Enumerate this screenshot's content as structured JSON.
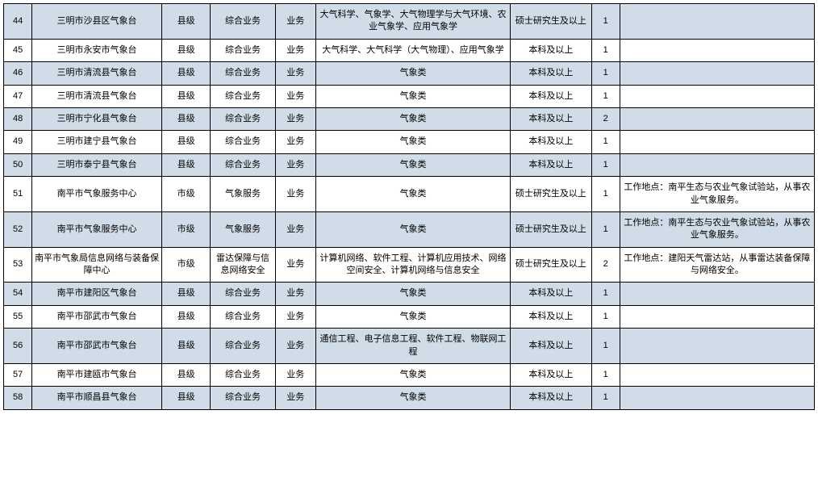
{
  "table": {
    "background_color": "#ffffff",
    "border_color": "#000000",
    "shaded_row_background": "#d0dce8",
    "text_color": "#000000",
    "font_size": 11,
    "columns": [
      {
        "key": "idx",
        "class": "col-idx"
      },
      {
        "key": "unit",
        "class": "col-unit"
      },
      {
        "key": "level",
        "class": "col-level"
      },
      {
        "key": "pos",
        "class": "col-pos"
      },
      {
        "key": "cat",
        "class": "col-cat"
      },
      {
        "key": "major",
        "class": "col-major"
      },
      {
        "key": "edu",
        "class": "col-edu"
      },
      {
        "key": "qty",
        "class": "col-qty"
      },
      {
        "key": "note",
        "class": "col-note"
      }
    ],
    "rows": [
      {
        "shaded": true,
        "idx": "44",
        "unit": "三明市沙县区气象台",
        "level": "县级",
        "pos": "综合业务",
        "cat": "业务",
        "major": "大气科学、气象学、大气物理学与大气环境、农业气象学、应用气象学",
        "edu": "硕士研究生及以上",
        "qty": "1",
        "note": ""
      },
      {
        "shaded": false,
        "idx": "45",
        "unit": "三明市永安市气象台",
        "level": "县级",
        "pos": "综合业务",
        "cat": "业务",
        "major": "大气科学、大气科学（大气物理）、应用气象学",
        "edu": "本科及以上",
        "qty": "1",
        "note": ""
      },
      {
        "shaded": true,
        "idx": "46",
        "unit": "三明市清流县气象台",
        "level": "县级",
        "pos": "综合业务",
        "cat": "业务",
        "major": "气象类",
        "edu": "本科及以上",
        "qty": "1",
        "note": ""
      },
      {
        "shaded": false,
        "idx": "47",
        "unit": "三明市清流县气象台",
        "level": "县级",
        "pos": "综合业务",
        "cat": "业务",
        "major": "气象类",
        "edu": "本科及以上",
        "qty": "1",
        "note": ""
      },
      {
        "shaded": true,
        "idx": "48",
        "unit": "三明市宁化县气象台",
        "level": "县级",
        "pos": "综合业务",
        "cat": "业务",
        "major": "气象类",
        "edu": "本科及以上",
        "qty": "2",
        "note": ""
      },
      {
        "shaded": false,
        "idx": "49",
        "unit": "三明市建宁县气象台",
        "level": "县级",
        "pos": "综合业务",
        "cat": "业务",
        "major": "气象类",
        "edu": "本科及以上",
        "qty": "1",
        "note": ""
      },
      {
        "shaded": true,
        "idx": "50",
        "unit": "三明市泰宁县气象台",
        "level": "县级",
        "pos": "综合业务",
        "cat": "业务",
        "major": "气象类",
        "edu": "本科及以上",
        "qty": "1",
        "note": ""
      },
      {
        "shaded": false,
        "idx": "51",
        "unit": "南平市气象服务中心",
        "level": "市级",
        "pos": "气象服务",
        "cat": "业务",
        "major": "气象类",
        "edu": "硕士研究生及以上",
        "qty": "1",
        "note": "工作地点：南平生态与农业气象试验站，从事农业气象服务。"
      },
      {
        "shaded": true,
        "idx": "52",
        "unit": "南平市气象服务中心",
        "level": "市级",
        "pos": "气象服务",
        "cat": "业务",
        "major": "气象类",
        "edu": "硕士研究生及以上",
        "qty": "1",
        "note": "工作地点：南平生态与农业气象试验站，从事农业气象服务。"
      },
      {
        "shaded": false,
        "idx": "53",
        "unit": "南平市气象局信息网络与装备保障中心",
        "level": "市级",
        "pos": "雷达保障与信息网络安全",
        "cat": "业务",
        "major": "计算机网络、软件工程、计算机应用技术、网络空间安全、计算机网络与信息安全",
        "edu": "硕士研究生及以上",
        "qty": "2",
        "note": "工作地点：建阳天气雷达站，从事雷达装备保障与网络安全。"
      },
      {
        "shaded": true,
        "idx": "54",
        "unit": "南平市建阳区气象台",
        "level": "县级",
        "pos": "综合业务",
        "cat": "业务",
        "major": "气象类",
        "edu": "本科及以上",
        "qty": "1",
        "note": ""
      },
      {
        "shaded": false,
        "idx": "55",
        "unit": "南平市邵武市气象台",
        "level": "县级",
        "pos": "综合业务",
        "cat": "业务",
        "major": "气象类",
        "edu": "本科及以上",
        "qty": "1",
        "note": ""
      },
      {
        "shaded": true,
        "idx": "56",
        "unit": "南平市邵武市气象台",
        "level": "县级",
        "pos": "综合业务",
        "cat": "业务",
        "major": "通信工程、电子信息工程、软件工程、物联网工程",
        "edu": "本科及以上",
        "qty": "1",
        "note": ""
      },
      {
        "shaded": false,
        "idx": "57",
        "unit": "南平市建瓯市气象台",
        "level": "县级",
        "pos": "综合业务",
        "cat": "业务",
        "major": "气象类",
        "edu": "本科及以上",
        "qty": "1",
        "note": ""
      },
      {
        "shaded": true,
        "idx": "58",
        "unit": "南平市顺昌县气象台",
        "level": "县级",
        "pos": "综合业务",
        "cat": "业务",
        "major": "气象类",
        "edu": "本科及以上",
        "qty": "1",
        "note": ""
      }
    ]
  }
}
